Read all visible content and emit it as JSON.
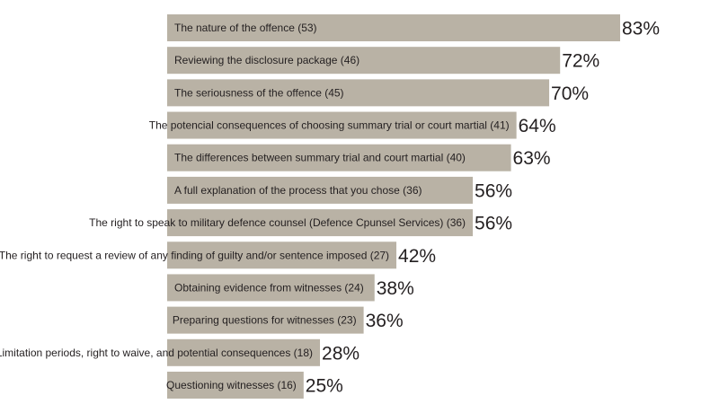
{
  "chart_data": {
    "type": "bar",
    "orientation": "horizontal",
    "categories": [
      "The nature of the offence (53)",
      "Reviewing the disclosure package (46)",
      "The seriousness of the offence (45)",
      "The potencial consequences of choosing summary trial or court martial (41)",
      "The differences between summary trial and court martial (40)",
      "A full explanation of the process that you chose (36)",
      "The right to speak to military defence counsel (Defence Cpunsel Services) (36)",
      "The right to request a review of any finding of guilty and/or sentence imposed (27)",
      "Obtaining evidence from witnesses (24)",
      "Preparing questions for witnesses (23)",
      "Limitation periods, right to waive, and potential consequences (18)",
      "Questioning witnesses (16)"
    ],
    "values": [
      83,
      72,
      70,
      64,
      63,
      56,
      56,
      42,
      38,
      36,
      28,
      25
    ],
    "value_labels": [
      "83%",
      "72%",
      "70%",
      "64%",
      "63%",
      "56%",
      "56%",
      "42%",
      "38%",
      "36%",
      "28%",
      "25%"
    ],
    "xlim": [
      0,
      83
    ],
    "grid": false,
    "colors": {
      "bar": "#b9b2a5",
      "text": "#231f20"
    }
  }
}
